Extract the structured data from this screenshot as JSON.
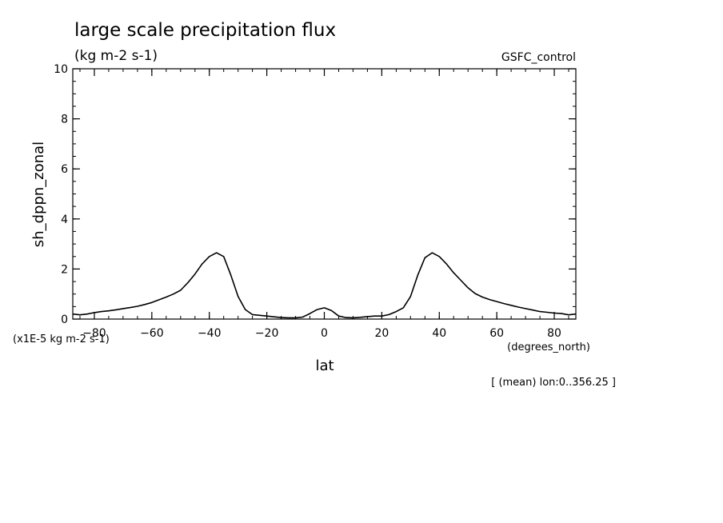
{
  "chart_data": {
    "type": "line",
    "title": "large scale precipitation flux",
    "subtitle": "(kg m-2 s-1)",
    "dataset_label": "GSFC_control",
    "xlabel": "lat",
    "x_units": "(degrees_north)",
    "ylabel": "sh_dppn_zonal",
    "y_scale_note": "(x1E-5 kg m-2 s-1)",
    "footer_note": "[ (mean) lon:0..356.25 ]",
    "xlim": [
      -87.5,
      87.5
    ],
    "ylim": [
      0,
      10
    ],
    "x_ticks": [
      -80,
      -60,
      -40,
      -20,
      0,
      20,
      40,
      60,
      80
    ],
    "x_tick_labels": [
      "−80",
      "−60",
      "−40",
      "−20",
      "0",
      "20",
      "40",
      "60",
      "80"
    ],
    "y_ticks": [
      0,
      2,
      4,
      6,
      8,
      10
    ],
    "y_tick_labels": [
      "0",
      "2",
      "4",
      "6",
      "8",
      "10"
    ],
    "grid": false,
    "line_color": "#000000",
    "series": [
      {
        "x": [
          -87.5,
          -85,
          -82.5,
          -80,
          -77.5,
          -75,
          -72.5,
          -70,
          -67.5,
          -65,
          -62.5,
          -60,
          -57.5,
          -55,
          -52.5,
          -50,
          -47.5,
          -45,
          -42.5,
          -40,
          -37.5,
          -35,
          -32.5,
          -30,
          -27.5,
          -25,
          -22.5,
          -20,
          -17.5,
          -15,
          -12.5,
          -10,
          -7.5,
          -5,
          -2.5,
          0,
          2.5,
          5,
          7.5,
          10,
          12.5,
          15,
          17.5,
          20,
          22.5,
          25,
          27.5,
          30,
          32.5,
          35,
          37.5,
          40,
          42.5,
          45,
          47.5,
          50,
          52.5,
          55,
          57.5,
          60,
          62.5,
          65,
          67.5,
          70,
          72.5,
          75,
          77.5,
          80,
          82.5,
          85,
          87.5
        ],
        "y": [
          0.2,
          0.17,
          0.2,
          0.26,
          0.3,
          0.33,
          0.37,
          0.42,
          0.46,
          0.51,
          0.58,
          0.66,
          0.77,
          0.88,
          1.0,
          1.15,
          1.45,
          1.8,
          2.2,
          2.5,
          2.65,
          2.5,
          1.75,
          0.9,
          0.38,
          0.18,
          0.15,
          0.12,
          0.09,
          0.06,
          0.05,
          0.05,
          0.08,
          0.22,
          0.38,
          0.45,
          0.34,
          0.12,
          0.06,
          0.05,
          0.07,
          0.1,
          0.12,
          0.12,
          0.18,
          0.3,
          0.45,
          0.9,
          1.75,
          2.45,
          2.65,
          2.5,
          2.2,
          1.85,
          1.55,
          1.25,
          1.02,
          0.88,
          0.78,
          0.7,
          0.62,
          0.55,
          0.48,
          0.42,
          0.36,
          0.3,
          0.27,
          0.24,
          0.22,
          0.17,
          0.2
        ]
      }
    ]
  }
}
